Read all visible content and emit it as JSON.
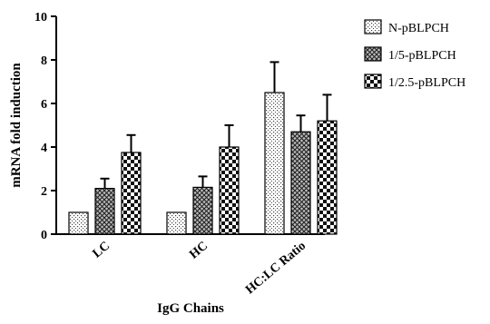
{
  "chart_data": {
    "type": "bar",
    "title": "",
    "xlabel": "IgG Chains",
    "ylabel": "mRNA fold induction",
    "categories": [
      "LC",
      "HC",
      "HC:LC Ratio"
    ],
    "ylim": [
      0,
      10
    ],
    "yticks": [
      0,
      2,
      4,
      6,
      8,
      10
    ],
    "grid": false,
    "legend_position": "top-right",
    "series": [
      {
        "name": "N-pBLPCH",
        "pattern": "fine-dots",
        "values": [
          1.0,
          1.0,
          6.5
        ],
        "errors": [
          0,
          0,
          1.4
        ]
      },
      {
        "name": "1/5-pBLPCH",
        "pattern": "crosshatch",
        "values": [
          2.1,
          2.15,
          4.7
        ],
        "errors": [
          0.45,
          0.5,
          0.75
        ]
      },
      {
        "name": "1/2.5-pBLPCH",
        "pattern": "checker",
        "values": [
          3.75,
          4.0,
          5.2
        ],
        "errors": [
          0.8,
          1.0,
          1.2
        ]
      }
    ]
  }
}
